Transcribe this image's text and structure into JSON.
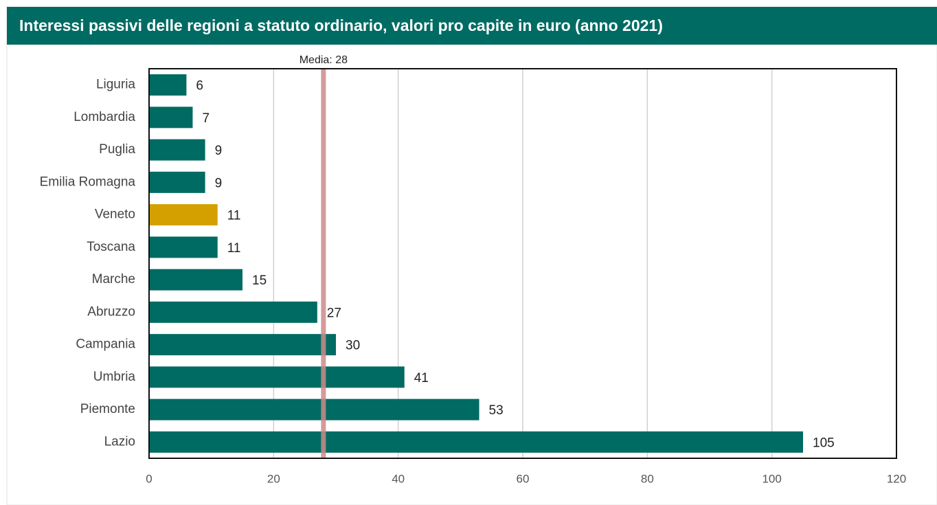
{
  "chart_data": {
    "type": "barh",
    "title": "Interessi passivi delle regioni a statuto ordinario, valori pro capite in euro (anno 2021)",
    "categories": [
      "Liguria",
      "Lombardia",
      "Puglia",
      "Emilia Romagna",
      "Veneto",
      "Toscana",
      "Marche",
      "Abruzzo",
      "Campania",
      "Umbria",
      "Piemonte",
      "Lazio"
    ],
    "values": [
      6,
      7,
      9,
      9,
      11,
      11,
      15,
      27,
      30,
      41,
      53,
      105
    ],
    "colors": [
      "#006b63",
      "#006b63",
      "#006b63",
      "#006b63",
      "#d4a000",
      "#006b63",
      "#006b63",
      "#006b63",
      "#006b63",
      "#006b63",
      "#006b63",
      "#006b63"
    ],
    "xlim": [
      0,
      120
    ],
    "xticks": [
      0,
      20,
      40,
      60,
      80,
      100,
      120
    ],
    "grid": true,
    "reference_line": {
      "label": "Media: 28",
      "value": 28
    }
  }
}
